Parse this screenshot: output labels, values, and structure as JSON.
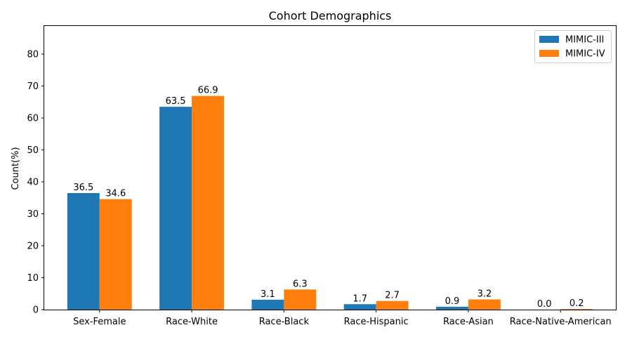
{
  "chart_data": {
    "type": "bar",
    "title": "Cohort Demographics",
    "xlabel": "",
    "ylabel": "Count(%)",
    "ylim": [
      0,
      88.8
    ],
    "yticks": [
      0,
      10,
      20,
      30,
      40,
      50,
      60,
      70,
      80
    ],
    "categories": [
      "Sex-Female",
      "Race-White",
      "Race-Black",
      "Race-Hispanic",
      "Race-Asian",
      "Race-Native-American"
    ],
    "series": [
      {
        "name": "MIMIC-III",
        "color": "#1f77b4",
        "values": [
          36.5,
          63.5,
          3.1,
          1.7,
          0.9,
          0.0
        ],
        "labels": [
          "36.5",
          "63.5",
          "3.1",
          "1.7",
          "0.9",
          "0.0"
        ]
      },
      {
        "name": "MIMIC-IV",
        "color": "#ff7f0e",
        "values": [
          34.6,
          66.9,
          6.3,
          2.7,
          3.2,
          0.2
        ],
        "labels": [
          "34.6",
          "66.9",
          "6.3",
          "2.7",
          "3.2",
          "0.2"
        ]
      }
    ],
    "legend": "top-right",
    "grid": false
  }
}
